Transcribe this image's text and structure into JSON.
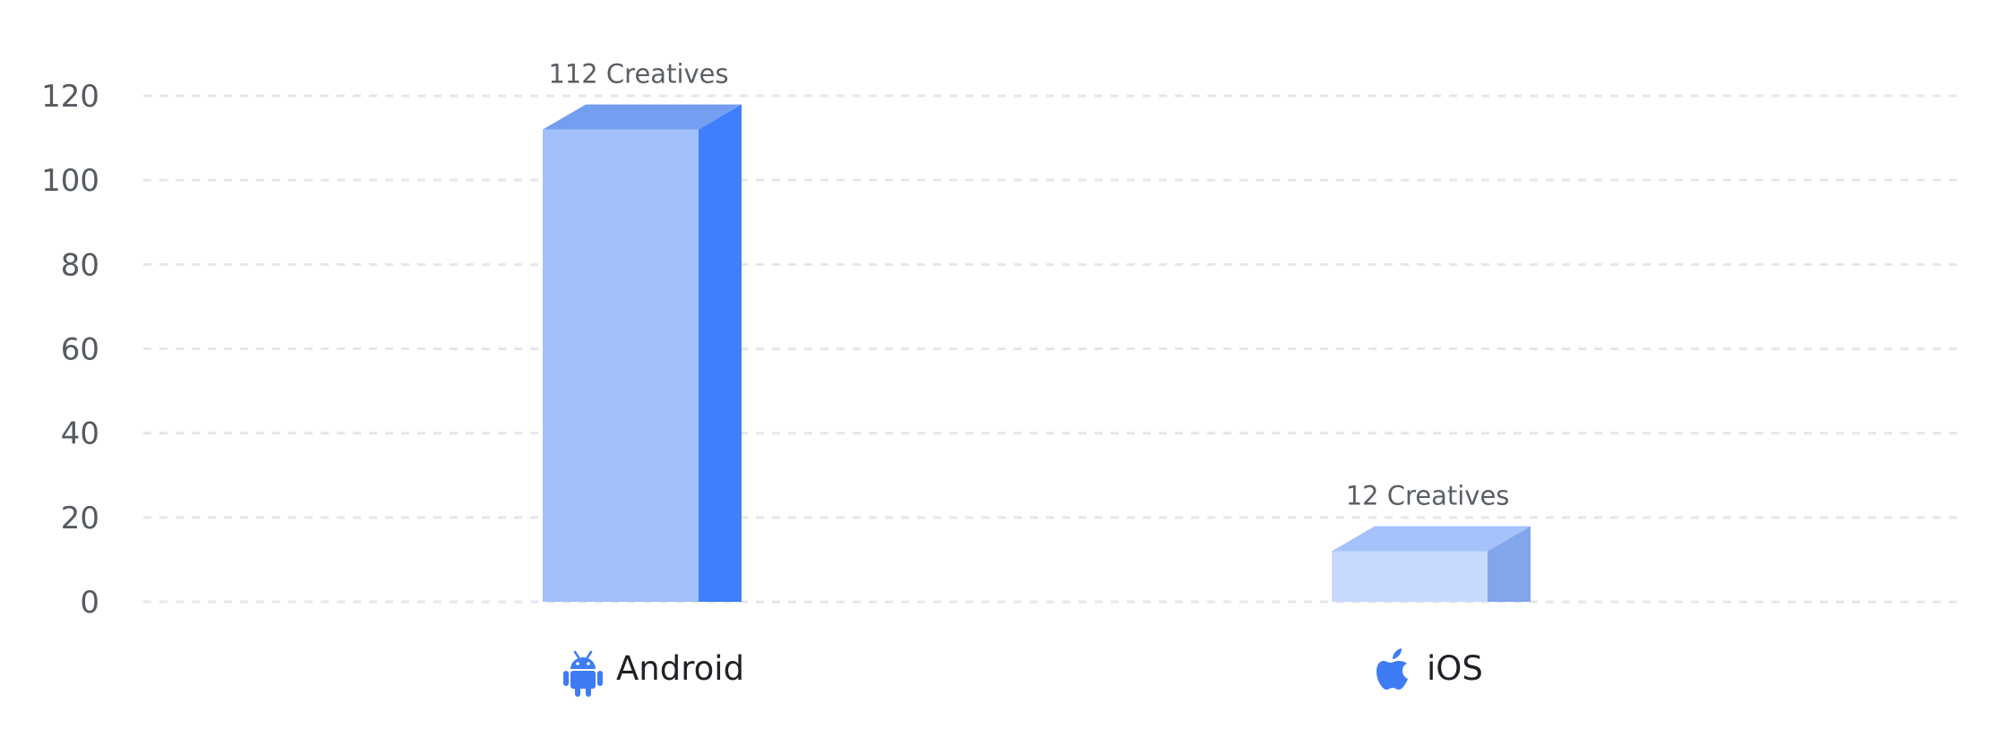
{
  "chart_data": {
    "type": "bar",
    "categories": [
      "Android",
      "iOS"
    ],
    "category_icons": [
      "android-icon",
      "apple-icon"
    ],
    "values": [
      112,
      12
    ],
    "data_labels": [
      "112 Creatives",
      "12 Creatives"
    ],
    "ylim": [
      0,
      120
    ],
    "yticks": [
      0,
      20,
      40,
      60,
      80,
      100,
      120
    ],
    "grid": true,
    "grid_style": "dashed",
    "colors": {
      "android": {
        "front": "#a1c0fb",
        "side": "#3f7efc",
        "top": "#749ff0"
      },
      "ios": {
        "front": "#c8d9fe",
        "side": "#82a6ec",
        "top": "#a5c2fb"
      },
      "icon": "#3d7cf4",
      "grid": "#e4e7ec"
    }
  }
}
